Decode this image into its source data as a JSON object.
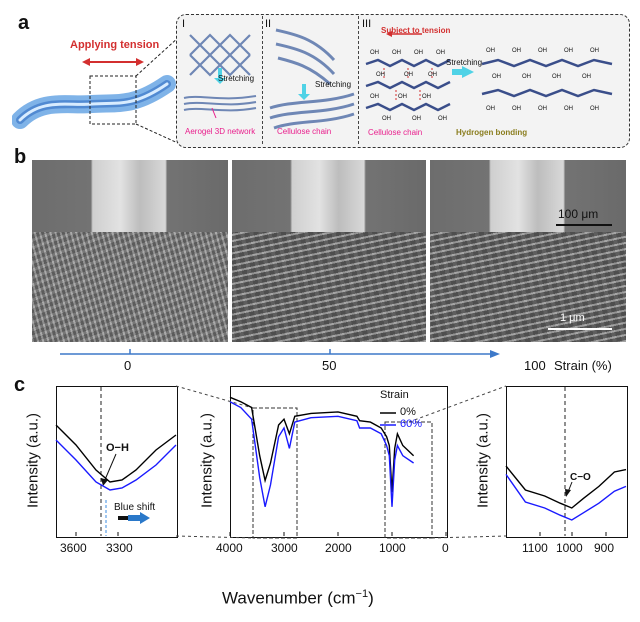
{
  "figure": {
    "panel_a": {
      "letter": "a",
      "applying_tension": "Applying tension",
      "section_I": "I",
      "section_II": "II",
      "section_III": "III",
      "stretching_1": "Stretching",
      "stretching_2": "Stretching",
      "stretching_3": "Stretching",
      "aerogel_label": "Aerogel 3D network",
      "cellulose_label_1": "Cellulose chain",
      "cellulose_label_2": "Cellulose chain",
      "subject_to_tension": "Subject to tension",
      "hydrogen_bonding": "Hydrogen bonding",
      "oh_group": "OH"
    },
    "panel_b": {
      "letter": "b",
      "scale_top": "100 μm",
      "scale_bottom": "1 μm",
      "strain_ticks": [
        "0",
        "50",
        "100"
      ],
      "strain_label": "Strain (%)"
    },
    "panel_c": {
      "letter": "c",
      "ylabel": "Intensity (a.u.)",
      "xlabel": "Wavenumber (cm",
      "xlabel_sup": "−1",
      "xlabel_end": ")",
      "oh_label": "O−H",
      "co_label": "C−O",
      "blue_shift": "Blue shift",
      "legend_title": "Strain",
      "legend_0": "0%",
      "legend_60": "60%",
      "left_ticks": [
        "3600",
        "3300"
      ],
      "mid_ticks": [
        "4000",
        "3000",
        "2000",
        "1000",
        "0"
      ],
      "right_ticks": [
        "1100",
        "1000",
        "900"
      ],
      "color_0": "#000000",
      "color_60": "#1a1aff"
    }
  },
  "chart_data": [
    {
      "type": "line",
      "title": "",
      "xlabel": "Wavenumber (cm−1)",
      "ylabel": "Intensity (a.u.)",
      "xlim": [
        4000,
        0
      ],
      "series": [
        {
          "name": "0%",
          "x": [
            4000,
            3800,
            3600,
            3450,
            3350,
            3250,
            3100,
            3000,
            2900,
            2800,
            2500,
            2000,
            1650,
            1600,
            1400,
            1200,
            1100,
            1050,
            1000,
            950,
            900,
            800,
            600
          ],
          "y": [
            0.95,
            0.92,
            0.88,
            0.55,
            0.38,
            0.5,
            0.76,
            0.8,
            0.7,
            0.82,
            0.84,
            0.85,
            0.82,
            0.79,
            0.78,
            0.74,
            0.68,
            0.62,
            0.3,
            0.6,
            0.7,
            0.62,
            0.55
          ]
        },
        {
          "name": "60%",
          "x": [
            4000,
            3800,
            3600,
            3450,
            3350,
            3250,
            3100,
            3000,
            2900,
            2800,
            2500,
            2000,
            1650,
            1600,
            1400,
            1200,
            1100,
            1050,
            1000,
            950,
            900,
            800,
            600
          ],
          "y": [
            0.92,
            0.88,
            0.8,
            0.4,
            0.2,
            0.35,
            0.68,
            0.74,
            0.6,
            0.78,
            0.81,
            0.82,
            0.79,
            0.74,
            0.74,
            0.7,
            0.62,
            0.55,
            0.2,
            0.52,
            0.62,
            0.55,
            0.5
          ]
        }
      ]
    }
  ]
}
